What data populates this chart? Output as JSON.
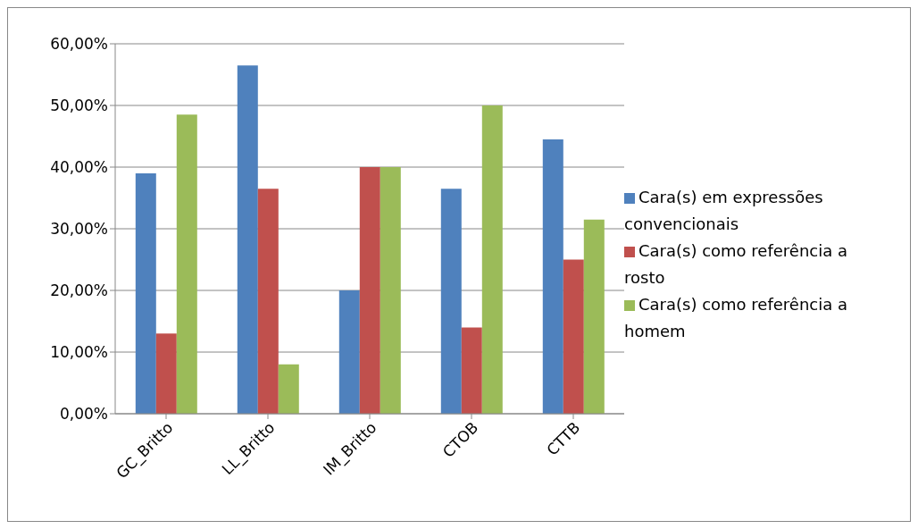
{
  "chart_data": {
    "type": "bar",
    "categories": [
      "GC_Britto",
      "LL_Britto",
      "IM_Britto",
      "CTOB",
      "CTTB"
    ],
    "series": [
      {
        "name": "Cara(s) em expressões convencionais",
        "color": "#4f81bd",
        "values": [
          39,
          56.5,
          20,
          36.5,
          44.5
        ]
      },
      {
        "name": "Cara(s) como referência a rosto",
        "color": "#c0504d",
        "values": [
          13,
          36.5,
          40,
          14,
          25
        ]
      },
      {
        "name": "Cara(s) como referência a homem",
        "color": "#9bbb59",
        "values": [
          48.5,
          8,
          40,
          50,
          31.5
        ]
      }
    ],
    "ylim": [
      0,
      60
    ],
    "yticks": [
      {
        "value": 0,
        "label": "0,00%"
      },
      {
        "value": 10,
        "label": "10,00%"
      },
      {
        "value": 20,
        "label": "20,00%"
      },
      {
        "value": 30,
        "label": "30,00%"
      },
      {
        "value": 40,
        "label": "40,00%"
      },
      {
        "value": 50,
        "label": "50,00%"
      },
      {
        "value": 60,
        "label": "60,00%"
      }
    ],
    "grid": "y",
    "legend": "right"
  }
}
